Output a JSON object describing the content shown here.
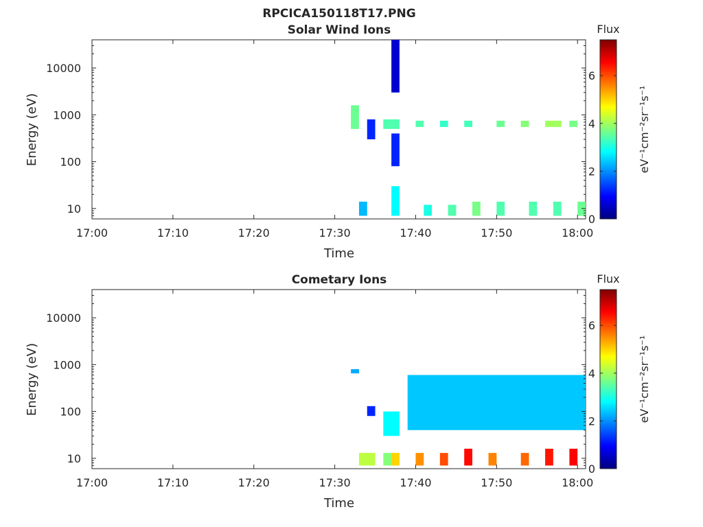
{
  "figure": {
    "title": "RPCICA150118T17.PNG"
  },
  "colormap": [
    "#00007f",
    "#0000ff",
    "#007fff",
    "#00ffff",
    "#7fff7f",
    "#ffff00",
    "#ff7f00",
    "#ff0000",
    "#7f0000"
  ],
  "chart_data": [
    {
      "type": "heatmap",
      "title": "Solar Wind Ions",
      "xlabel": "Time",
      "ylabel": "Energy (eV)",
      "y_scale": "log",
      "xlim": [
        "17:00",
        "18:01"
      ],
      "ylim": [
        6,
        40000
      ],
      "x_tick_labels": [
        "17:00",
        "17:10",
        "17:20",
        "17:30",
        "17:40",
        "17:50",
        "18:00"
      ],
      "y_tick_labels": [
        "10",
        "100",
        "1000",
        "10000"
      ],
      "colorbar": {
        "label": "Flux",
        "unit_label": "eV⁻¹cm⁻²sr⁻¹s⁻¹",
        "range": [
          0,
          7.5
        ],
        "tick_labels": [
          "0",
          "2",
          "4",
          "6"
        ]
      },
      "flux_bands": [
        {
          "t": [
            "17:32",
            "17:33"
          ],
          "energy": [
            500,
            1600
          ],
          "flux": 3.6
        },
        {
          "t": [
            "17:33",
            "17:34"
          ],
          "energy": [
            7,
            14
          ],
          "flux": 2.3
        },
        {
          "t": [
            "17:34",
            "17:35"
          ],
          "energy": [
            300,
            800
          ],
          "flux": 1.2
        },
        {
          "t": [
            "17:36",
            "17:38"
          ],
          "energy": [
            500,
            800
          ],
          "flux": 3.4
        },
        {
          "t": [
            "17:37",
            "17:38"
          ],
          "energy": [
            7,
            30
          ],
          "flux": 2.8
        },
        {
          "t": [
            "17:37",
            "17:38"
          ],
          "energy": [
            80,
            400
          ],
          "flux": 1.2
        },
        {
          "t": [
            "17:37",
            "17:38"
          ],
          "energy": [
            3000,
            40000
          ],
          "flux": 0.6
        },
        {
          "t": [
            "17:40",
            "17:41"
          ],
          "energy": [
            550,
            750
          ],
          "flux": 3.4
        },
        {
          "t": [
            "17:41",
            "17:42"
          ],
          "energy": [
            7,
            12
          ],
          "flux": 3.0
        },
        {
          "t": [
            "17:43",
            "17:44"
          ],
          "energy": [
            550,
            750
          ],
          "flux": 3.2
        },
        {
          "t": [
            "17:44",
            "17:45"
          ],
          "energy": [
            7,
            12
          ],
          "flux": 3.4
        },
        {
          "t": [
            "17:46",
            "17:47"
          ],
          "energy": [
            550,
            750
          ],
          "flux": 3.3
        },
        {
          "t": [
            "17:47",
            "17:48"
          ],
          "energy": [
            7,
            14
          ],
          "flux": 3.7
        },
        {
          "t": [
            "17:50",
            "17:51"
          ],
          "energy": [
            550,
            750
          ],
          "flux": 3.6
        },
        {
          "t": [
            "17:50",
            "17:51"
          ],
          "energy": [
            7,
            14
          ],
          "flux": 3.4
        },
        {
          "t": [
            "17:53",
            "17:54"
          ],
          "energy": [
            550,
            750
          ],
          "flux": 3.8
        },
        {
          "t": [
            "17:54",
            "17:55"
          ],
          "energy": [
            7,
            14
          ],
          "flux": 3.4
        },
        {
          "t": [
            "17:56",
            "17:58"
          ],
          "energy": [
            550,
            750
          ],
          "flux": 4.0
        },
        {
          "t": [
            "17:57",
            "17:58"
          ],
          "energy": [
            7,
            14
          ],
          "flux": 3.4
        },
        {
          "t": [
            "17:59",
            "18:00"
          ],
          "energy": [
            550,
            750
          ],
          "flux": 3.7
        },
        {
          "t": [
            "18:00",
            "18:01"
          ],
          "energy": [
            7,
            14
          ],
          "flux": 3.6
        }
      ]
    },
    {
      "type": "heatmap",
      "title": "Cometary Ions",
      "xlabel": "Time",
      "ylabel": "Energy (eV)",
      "y_scale": "log",
      "xlim": [
        "17:00",
        "18:01"
      ],
      "ylim": [
        6,
        40000
      ],
      "x_tick_labels": [
        "17:00",
        "17:10",
        "17:20",
        "17:30",
        "17:40",
        "17:50",
        "18:00"
      ],
      "y_tick_labels": [
        "10",
        "100",
        "1000",
        "10000"
      ],
      "colorbar": {
        "label": "Flux",
        "unit_label": "eV⁻¹cm⁻²sr⁻¹s⁻¹",
        "range": [
          0,
          7.5
        ],
        "tick_labels": [
          "0",
          "2",
          "4",
          "6"
        ]
      },
      "flux_bands": [
        {
          "t": [
            "17:32",
            "17:33"
          ],
          "energy": [
            650,
            800
          ],
          "flux": 2.2
        },
        {
          "t": [
            "17:33",
            "17:35"
          ],
          "energy": [
            7,
            13
          ],
          "flux": 4.2
        },
        {
          "t": [
            "17:34",
            "17:35"
          ],
          "energy": [
            80,
            130
          ],
          "flux": 1.2
        },
        {
          "t": [
            "17:36",
            "17:37"
          ],
          "energy": [
            7,
            13
          ],
          "flux": 3.8
        },
        {
          "t": [
            "17:36",
            "17:38"
          ],
          "energy": [
            30,
            100
          ],
          "flux": 2.8
        },
        {
          "t": [
            "17:37",
            "17:38"
          ],
          "energy": [
            7,
            13
          ],
          "flux": 5.0
        },
        {
          "t": [
            "17:40",
            "17:41"
          ],
          "energy": [
            7,
            13
          ],
          "flux": 5.5
        },
        {
          "t": [
            "17:43",
            "17:44"
          ],
          "energy": [
            7,
            13
          ],
          "flux": 6.0
        },
        {
          "t": [
            "17:46",
            "17:47"
          ],
          "energy": [
            7,
            16
          ],
          "flux": 6.5
        },
        {
          "t": [
            "17:49",
            "17:50"
          ],
          "energy": [
            7,
            13
          ],
          "flux": 5.6
        },
        {
          "t": [
            "17:53",
            "17:54"
          ],
          "energy": [
            7,
            13
          ],
          "flux": 5.8
        },
        {
          "t": [
            "17:56",
            "17:57"
          ],
          "energy": [
            7,
            16
          ],
          "flux": 6.4
        },
        {
          "t": [
            "17:59",
            "18:00"
          ],
          "energy": [
            7,
            16
          ],
          "flux": 6.6
        },
        {
          "t": [
            "17:39",
            "18:01"
          ],
          "energy": [
            40,
            600
          ],
          "flux": 2.4
        }
      ]
    }
  ]
}
